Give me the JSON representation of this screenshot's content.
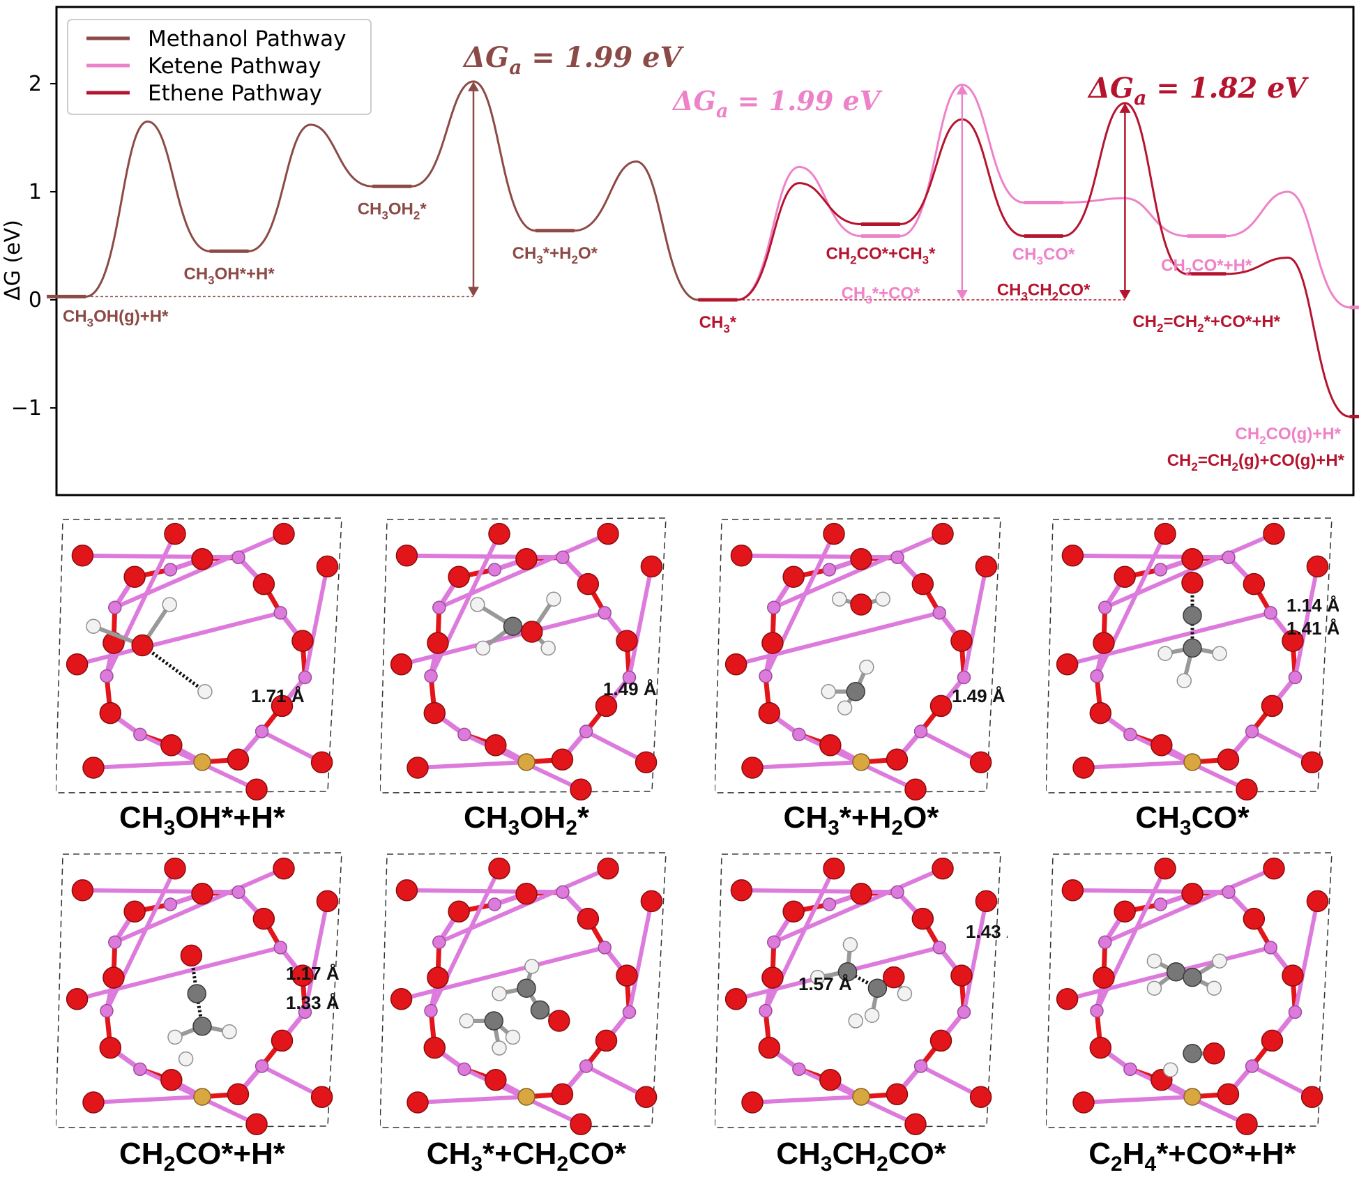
{
  "chart_data": {
    "type": "line",
    "ylabel": "ΔG (eV)",
    "yticks": [
      -1,
      0,
      1,
      2
    ],
    "ylim": [
      -1.75,
      2.75
    ],
    "legend": {
      "placement": "top-left",
      "entries": [
        "Methanol Pathway",
        "Ketene Pathway",
        "Ethene Pathway"
      ]
    },
    "colors": {
      "methanol": "#8B4A45",
      "ketene": "#EE82C8",
      "ethene": "#B5142E"
    },
    "series": [
      {
        "name": "Methanol Pathway",
        "points": [
          {
            "x": 0.0,
            "y": 0.03,
            "kind": "state"
          },
          {
            "x": 1.0,
            "y": 1.65,
            "kind": "ts"
          },
          {
            "x": 2.0,
            "y": 0.45,
            "kind": "state"
          },
          {
            "x": 3.0,
            "y": 1.62,
            "kind": "ts"
          },
          {
            "x": 4.0,
            "y": 1.05,
            "kind": "state"
          },
          {
            "x": 5.0,
            "y": 2.02,
            "kind": "ts"
          },
          {
            "x": 6.0,
            "y": 0.64,
            "kind": "state"
          },
          {
            "x": 7.0,
            "y": 1.28,
            "kind": "ts"
          },
          {
            "x": 8.0,
            "y": 0.0,
            "kind": "state"
          }
        ]
      },
      {
        "name": "Ketene Pathway",
        "points": [
          {
            "x": 8.0,
            "y": 0.0,
            "kind": "state"
          },
          {
            "x": 9.0,
            "y": 1.23,
            "kind": "ts"
          },
          {
            "x": 10.0,
            "y": 0.59,
            "kind": "state"
          },
          {
            "x": 11.0,
            "y": 1.99,
            "kind": "ts"
          },
          {
            "x": 12.0,
            "y": 0.9,
            "kind": "state"
          },
          {
            "x": 13.0,
            "y": 0.94,
            "kind": "ts"
          },
          {
            "x": 14.0,
            "y": 0.59,
            "kind": "state"
          },
          {
            "x": 15.0,
            "y": 1.0,
            "kind": "ts"
          },
          {
            "x": 16.0,
            "y": -0.07,
            "kind": "state"
          }
        ]
      },
      {
        "name": "Ethene Pathway",
        "points": [
          {
            "x": 8.0,
            "y": 0.0,
            "kind": "state"
          },
          {
            "x": 9.0,
            "y": 1.08,
            "kind": "ts"
          },
          {
            "x": 10.0,
            "y": 0.7,
            "kind": "state"
          },
          {
            "x": 11.0,
            "y": 1.67,
            "kind": "ts"
          },
          {
            "x": 12.0,
            "y": 0.59,
            "kind": "state"
          },
          {
            "x": 13.0,
            "y": 1.82,
            "kind": "ts"
          },
          {
            "x": 14.0,
            "y": 0.24,
            "kind": "state"
          },
          {
            "x": 15.0,
            "y": 0.39,
            "kind": "ts"
          },
          {
            "x": 16.0,
            "y": -1.08,
            "kind": "state"
          }
        ]
      }
    ],
    "barriers": [
      {
        "value": 1.99,
        "series": "Methanol Pathway",
        "x": 5.0,
        "from": 0.03,
        "to": 2.02
      },
      {
        "value": 1.99,
        "series": "Ketene Pathway",
        "x": 11.0,
        "from": 0.0,
        "to": 1.99
      },
      {
        "value": 1.82,
        "series": "Ethene Pathway",
        "x": 13.0,
        "from": 0.0,
        "to": 1.82
      }
    ],
    "barrier_label": {
      "prefix": "ΔG",
      "sub": "a",
      "mid": " = ",
      "unit": " eV"
    },
    "reference_lines": [
      {
        "series": "Methanol Pathway",
        "y": 0.03,
        "x_from": 0.0,
        "x_to": 5.0
      },
      {
        "series": "Ethene Pathway",
        "y": 0.0,
        "x_from": 8.0,
        "x_to": 13.0
      }
    ],
    "state_labels": [
      {
        "series": "Methanol Pathway",
        "x": 0.0,
        "y": 0.03,
        "parts": [
          [
            "CH"
          ],
          [
            "3",
            "sub"
          ],
          [
            "OH(g)+H*"
          ]
        ]
      },
      {
        "series": "Methanol Pathway",
        "x": 2.0,
        "y": 0.45,
        "parts": [
          [
            "CH"
          ],
          [
            "3",
            "sub"
          ],
          [
            "OH*+H*"
          ]
        ]
      },
      {
        "series": "Methanol Pathway",
        "x": 4.0,
        "y": 1.05,
        "parts": [
          [
            "CH"
          ],
          [
            "3",
            "sub"
          ],
          [
            "OH"
          ],
          [
            "2",
            "sub"
          ],
          [
            "*"
          ]
        ]
      },
      {
        "series": "Methanol Pathway",
        "x": 6.0,
        "y": 0.64,
        "parts": [
          [
            "CH"
          ],
          [
            "3",
            "sub"
          ],
          [
            "*+H"
          ],
          [
            "2",
            "sub"
          ],
          [
            "O*"
          ]
        ]
      },
      {
        "series": "Ethene Pathway",
        "x": 8.0,
        "y": 0.0,
        "parts": [
          [
            "CH"
          ],
          [
            "3",
            "sub"
          ],
          [
            "*"
          ]
        ]
      },
      {
        "series": "Ethene Pathway",
        "x": 10.0,
        "y": 0.7,
        "parts": [
          [
            "CH"
          ],
          [
            "2",
            "sub"
          ],
          [
            "CO*+CH"
          ],
          [
            "3",
            "sub"
          ],
          [
            "*"
          ]
        ]
      },
      {
        "series": "Ketene Pathway",
        "x": 10.0,
        "y": 0.59,
        "parts": [
          [
            "CH"
          ],
          [
            "3",
            "sub"
          ],
          [
            "*+CO*"
          ]
        ]
      },
      {
        "series": "Ketene Pathway",
        "x": 12.0,
        "y": 0.9,
        "parts": [
          [
            "CH"
          ],
          [
            "3",
            "sub"
          ],
          [
            "CO*"
          ]
        ]
      },
      {
        "series": "Ethene Pathway",
        "x": 12.0,
        "y": 0.59,
        "parts": [
          [
            "CH"
          ],
          [
            "3",
            "sub"
          ],
          [
            "CH"
          ],
          [
            "2",
            "sub"
          ],
          [
            "CO*"
          ]
        ]
      },
      {
        "series": "Ketene Pathway",
        "x": 14.0,
        "y": 0.59,
        "parts": [
          [
            "CH"
          ],
          [
            "2",
            "sub"
          ],
          [
            "CO*+H*"
          ]
        ]
      },
      {
        "series": "Ethene Pathway",
        "x": 14.0,
        "y": 0.24,
        "parts": [
          [
            "CH"
          ],
          [
            "2",
            "sub"
          ],
          [
            "=CH"
          ],
          [
            "2",
            "sub"
          ],
          [
            "*+CO*+H*"
          ]
        ]
      },
      {
        "series": "Ketene Pathway",
        "x": 16.0,
        "y": -0.07,
        "parts": [
          [
            "CH"
          ],
          [
            "2",
            "sub"
          ],
          [
            "CO(g)+H*"
          ]
        ]
      },
      {
        "series": "Ethene Pathway",
        "x": 16.0,
        "y": -1.08,
        "parts": [
          [
            "CH"
          ],
          [
            "2",
            "sub"
          ],
          [
            "=CH"
          ],
          [
            "2",
            "sub"
          ],
          [
            "(g)+CO(g)+H*"
          ]
        ]
      }
    ]
  },
  "structures": [
    {
      "caption": [
        [
          "CH"
        ],
        [
          "3",
          "sub"
        ],
        [
          "OH*+H*"
        ]
      ],
      "distances": [
        "1.71 Å"
      ],
      "adsorbate": {
        "atoms": [
          [
            "H",
            -0.4,
            -0.12
          ],
          [
            "H",
            -0.12,
            -0.2
          ],
          [
            "O",
            -0.22,
            -0.05
          ],
          [
            "H",
            0.01,
            0.12
          ]
        ],
        "bonds": [
          [
            0,
            2
          ],
          [
            1,
            2
          ]
        ],
        "dashed": [
          [
            2,
            3
          ]
        ]
      }
    },
    {
      "caption": [
        [
          "CH"
        ],
        [
          "3",
          "sub"
        ],
        [
          "OH"
        ],
        [
          "2",
          "sub"
        ],
        [
          "*"
        ]
      ],
      "distances": [
        "1.49 Å"
      ],
      "adsorbate": {
        "atoms": [
          [
            "H",
            -0.18,
            -0.2
          ],
          [
            "H",
            0.1,
            -0.22
          ],
          [
            "C",
            -0.05,
            -0.12
          ],
          [
            "O",
            0.02,
            -0.1
          ],
          [
            "H",
            -0.16,
            -0.04
          ],
          [
            "H",
            0.08,
            -0.04
          ]
        ],
        "bonds": [
          [
            0,
            2
          ],
          [
            1,
            3
          ],
          [
            2,
            3
          ],
          [
            2,
            4
          ],
          [
            3,
            5
          ]
        ],
        "dashed": []
      }
    },
    {
      "caption": [
        [
          "CH"
        ],
        [
          "3",
          "sub"
        ],
        [
          "*+H"
        ],
        [
          "2",
          "sub"
        ],
        [
          "O*"
        ]
      ],
      "distances": [
        "1.49 Å"
      ],
      "adsorbate": {
        "atoms": [
          [
            "H",
            -0.08,
            -0.22
          ],
          [
            "O",
            0.0,
            -0.2
          ],
          [
            "H",
            0.08,
            -0.22
          ],
          [
            "H",
            -0.12,
            0.12
          ],
          [
            "C",
            -0.02,
            0.12
          ],
          [
            "H",
            0.02,
            0.03
          ],
          [
            "H",
            -0.06,
            0.18
          ]
        ],
        "bonds": [
          [
            0,
            1
          ],
          [
            1,
            2
          ],
          [
            3,
            4
          ],
          [
            4,
            5
          ],
          [
            4,
            6
          ]
        ],
        "dashed": []
      }
    },
    {
      "caption": [
        [
          "CH"
        ],
        [
          "3",
          "sub"
        ],
        [
          "CO*"
        ]
      ],
      "distances": [
        "1.14 Å",
        "1.41 Å"
      ],
      "adsorbate": {
        "atoms": [
          [
            "O",
            0.0,
            -0.28
          ],
          [
            "C",
            0.0,
            -0.16
          ],
          [
            "C",
            0.0,
            -0.04
          ],
          [
            "H",
            -0.1,
            -0.02
          ],
          [
            "H",
            0.1,
            -0.02
          ],
          [
            "H",
            -0.03,
            0.08
          ]
        ],
        "bonds": [
          [
            2,
            3
          ],
          [
            2,
            4
          ],
          [
            2,
            5
          ]
        ],
        "dashed": [
          [
            0,
            1
          ],
          [
            1,
            2
          ]
        ]
      }
    },
    {
      "caption": [
        [
          "CH"
        ],
        [
          "2",
          "sub"
        ],
        [
          "CO*+H*"
        ]
      ],
      "distances": [
        "1.17 Å",
        "1.33 Å"
      ],
      "adsorbate": {
        "atoms": [
          [
            "O",
            -0.04,
            -0.14
          ],
          [
            "C",
            -0.02,
            0.0
          ],
          [
            "C",
            0.0,
            0.12
          ],
          [
            "H",
            -0.1,
            0.16
          ],
          [
            "H",
            0.1,
            0.14
          ],
          [
            "H",
            -0.06,
            0.24
          ]
        ],
        "bonds": [
          [
            2,
            3
          ],
          [
            2,
            4
          ]
        ],
        "dashed": [
          [
            0,
            1
          ],
          [
            1,
            2
          ]
        ]
      }
    },
    {
      "caption": [
        [
          "CH"
        ],
        [
          "3",
          "sub"
        ],
        [
          "*+CH"
        ],
        [
          "2",
          "sub"
        ],
        [
          "CO*"
        ]
      ],
      "distances": [],
      "adsorbate": {
        "atoms": [
          [
            "H",
            0.02,
            -0.1
          ],
          [
            "C",
            0.0,
            -0.02
          ],
          [
            "C",
            0.05,
            0.06
          ],
          [
            "O",
            0.12,
            0.1
          ],
          [
            "H",
            -0.1,
            0.0
          ],
          [
            "C",
            -0.12,
            0.1
          ],
          [
            "H",
            -0.22,
            0.1
          ],
          [
            "H",
            -0.1,
            0.2
          ],
          [
            "H",
            -0.05,
            0.16
          ]
        ],
        "bonds": [
          [
            0,
            1
          ],
          [
            1,
            2
          ],
          [
            2,
            3
          ],
          [
            1,
            4
          ],
          [
            5,
            6
          ],
          [
            5,
            7
          ],
          [
            5,
            8
          ]
        ],
        "dashed": []
      }
    },
    {
      "caption": [
        [
          "CH"
        ],
        [
          "3",
          "sub"
        ],
        [
          "CH"
        ],
        [
          "2",
          "sub"
        ],
        [
          "CO*"
        ]
      ],
      "distances": [
        "1.43 Å",
        "1.57 Å"
      ],
      "adsorbate": {
        "atoms": [
          [
            "H",
            -0.04,
            -0.18
          ],
          [
            "C",
            -0.05,
            -0.08
          ],
          [
            "H",
            -0.16,
            -0.06
          ],
          [
            "C",
            0.06,
            -0.02
          ],
          [
            "O",
            0.12,
            -0.06
          ],
          [
            "H",
            0.16,
            0.0
          ],
          [
            "H",
            -0.02,
            0.1
          ],
          [
            "H",
            0.04,
            0.08
          ]
        ],
        "bonds": [
          [
            0,
            1
          ],
          [
            1,
            2
          ],
          [
            3,
            4
          ],
          [
            4,
            5
          ],
          [
            3,
            7
          ]
        ],
        "dashed": [
          [
            1,
            3
          ]
        ]
      }
    },
    {
      "caption": [
        [
          "C"
        ],
        [
          "2",
          "sub"
        ],
        [
          "H"
        ],
        [
          "4",
          "sub"
        ],
        [
          "*+CO*+H*"
        ]
      ],
      "distances": [],
      "adsorbate": {
        "atoms": [
          [
            "H",
            -0.14,
            -0.12
          ],
          [
            "C",
            -0.06,
            -0.08
          ],
          [
            "C",
            0.0,
            -0.06
          ],
          [
            "H",
            0.1,
            -0.12
          ],
          [
            "H",
            -0.14,
            -0.02
          ],
          [
            "H",
            0.08,
            -0.02
          ],
          [
            "C",
            0.0,
            0.22
          ],
          [
            "O",
            0.08,
            0.22
          ],
          [
            "H",
            -0.08,
            0.28
          ]
        ],
        "bonds": [
          [
            0,
            1
          ],
          [
            1,
            2
          ],
          [
            2,
            3
          ],
          [
            1,
            4
          ],
          [
            2,
            5
          ],
          [
            6,
            7
          ]
        ],
        "dashed": []
      }
    }
  ]
}
